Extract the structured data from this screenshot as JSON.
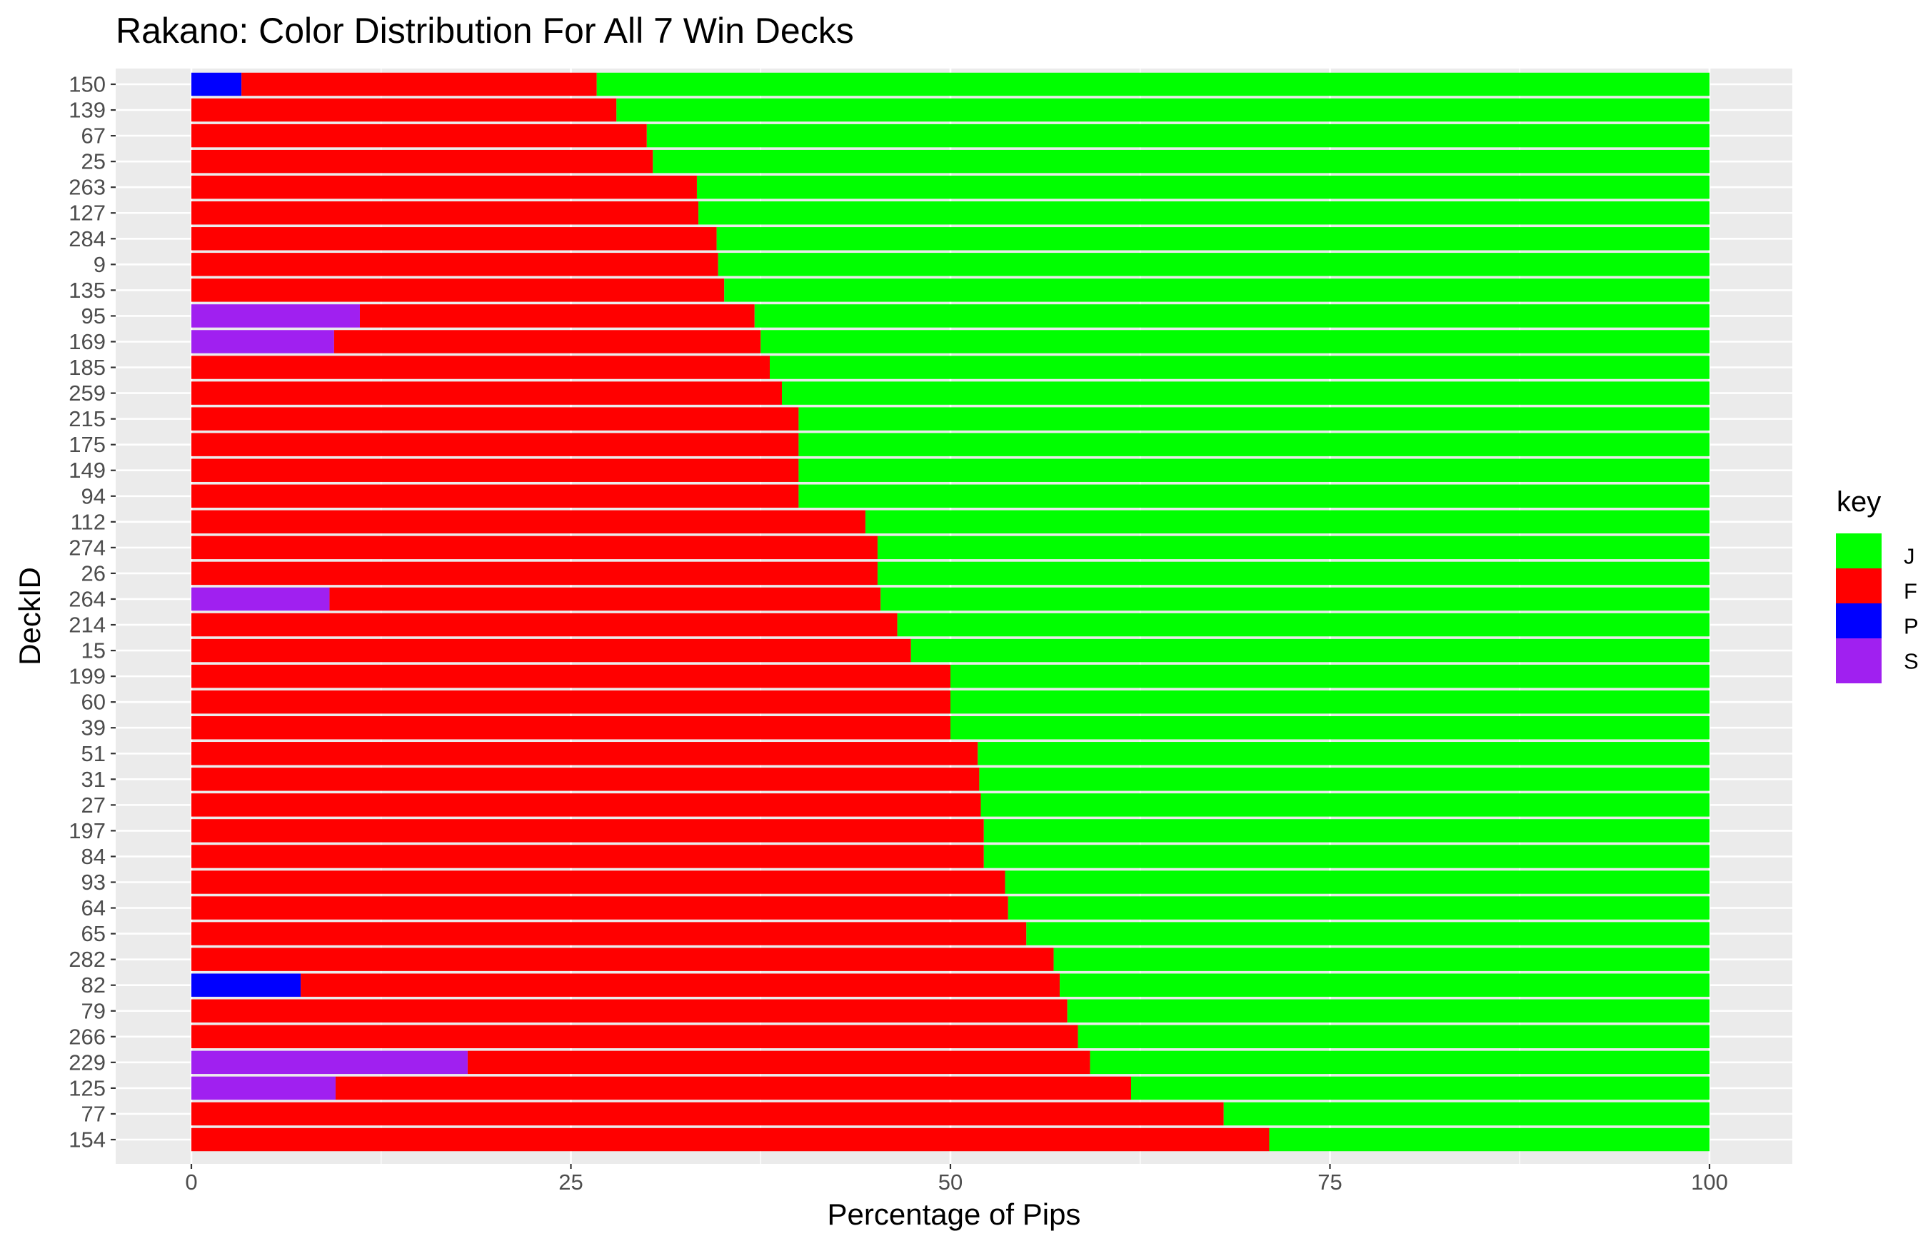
{
  "chart_data": {
    "type": "bar",
    "orientation": "horizontal",
    "stacked": true,
    "title": "Rakano: Color Distribution For All 7 Win Decks",
    "xlabel": "Percentage of Pips",
    "ylabel": "DeckID",
    "xlim": [
      0,
      100
    ],
    "xticks": [
      0,
      25,
      50,
      75,
      100
    ],
    "grid": true,
    "legend_position": "right",
    "legend_title": "key",
    "legend": [
      {
        "key": "J",
        "color": "#00FF00"
      },
      {
        "key": "F",
        "color": "#FF0000"
      },
      {
        "key": "P",
        "color": "#0000FF"
      },
      {
        "key": "S",
        "color": "#A020F0"
      }
    ],
    "stack_order": [
      "P",
      "S",
      "F",
      "J"
    ],
    "categories": [
      "150",
      "139",
      "67",
      "25",
      "263",
      "127",
      "284",
      "9",
      "135",
      "95",
      "169",
      "185",
      "259",
      "215",
      "175",
      "149",
      "94",
      "112",
      "274",
      "26",
      "264",
      "214",
      "15",
      "199",
      "60",
      "39",
      "51",
      "31",
      "27",
      "197",
      "84",
      "93",
      "64",
      "65",
      "282",
      "82",
      "79",
      "266",
      "229",
      "125",
      "77",
      "154"
    ],
    "series": [
      {
        "name": "P",
        "color": "#0000FF",
        "values": [
          3.3,
          0,
          0,
          0,
          0,
          0,
          0,
          0,
          0,
          0,
          0,
          0,
          0,
          0,
          0,
          0,
          0,
          0,
          0,
          0,
          0,
          0,
          0,
          0,
          0,
          0,
          0,
          0,
          0,
          0,
          0,
          0,
          0,
          0,
          0,
          7.2,
          0,
          0,
          0,
          0,
          0,
          0
        ]
      },
      {
        "name": "S",
        "color": "#A020F0",
        "values": [
          0,
          0,
          0,
          0,
          0,
          0,
          0,
          0,
          0,
          11.1,
          9.4,
          0,
          0,
          0,
          0,
          0,
          0,
          0,
          0,
          0,
          9.1,
          0,
          0,
          0,
          0,
          0,
          0,
          0,
          0,
          0,
          0,
          0,
          0,
          0,
          0,
          0,
          0,
          0,
          18.2,
          9.5,
          0,
          0
        ]
      },
      {
        "name": "F",
        "color": "#FF0000",
        "values": [
          23.4,
          28.0,
          30.0,
          30.4,
          33.3,
          33.4,
          34.6,
          34.7,
          35.1,
          26.0,
          28.1,
          38.1,
          38.9,
          40.0,
          40.0,
          40.0,
          40.0,
          44.4,
          45.2,
          45.2,
          36.3,
          46.5,
          47.4,
          50.0,
          50.0,
          50.0,
          51.8,
          51.9,
          52.0,
          52.2,
          52.2,
          53.6,
          53.8,
          55.0,
          56.8,
          50.0,
          57.7,
          58.4,
          41.0,
          52.4,
          68.0,
          71.0
        ]
      },
      {
        "name": "J",
        "color": "#00FF00",
        "values": [
          73.3,
          72.0,
          70.0,
          69.6,
          66.7,
          66.6,
          65.4,
          65.3,
          64.9,
          62.9,
          62.5,
          61.9,
          61.1,
          60.0,
          60.0,
          60.0,
          60.0,
          55.6,
          54.8,
          54.8,
          54.6,
          53.5,
          52.6,
          50.0,
          50.0,
          50.0,
          48.2,
          48.1,
          48.0,
          47.8,
          47.8,
          46.4,
          46.2,
          45.0,
          43.2,
          42.8,
          42.3,
          41.6,
          40.8,
          38.1,
          32.0,
          29.0
        ]
      }
    ]
  }
}
